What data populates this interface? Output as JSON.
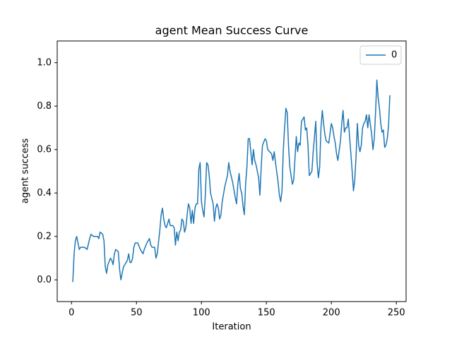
{
  "chart_data": {
    "type": "line",
    "title": "agent Mean Success Curve",
    "xlabel": "Iteration",
    "ylabel": "agent success",
    "xlim": [
      -11,
      257.5
    ],
    "ylim": [
      -0.1,
      1.1
    ],
    "xticks": [
      0,
      50,
      100,
      150,
      200,
      250
    ],
    "yticks": [
      {
        "value": 0,
        "label": "0.0"
      },
      {
        "value": 0.2,
        "label": "0.2"
      },
      {
        "value": 0.4,
        "label": "0.4"
      },
      {
        "value": 0.6,
        "label": "0.6"
      },
      {
        "value": 0.8,
        "label": "0.8"
      },
      {
        "value": 1,
        "label": "1.0"
      }
    ],
    "legend": "upper right",
    "x": [
      1,
      2,
      3,
      4,
      5,
      6,
      7,
      8,
      10,
      12,
      14,
      15,
      17,
      20,
      21,
      22,
      24,
      25,
      26,
      27,
      28,
      30,
      31,
      32,
      33,
      34,
      36,
      37,
      38,
      40,
      42,
      43,
      44,
      45,
      46,
      47,
      48,
      49,
      51,
      53,
      55,
      56,
      58,
      60,
      61,
      62,
      64,
      65,
      66,
      68,
      69,
      70,
      71,
      72,
      73,
      74,
      75,
      76,
      78,
      79,
      80,
      81,
      82,
      83,
      84,
      85,
      86,
      87,
      88,
      89,
      90,
      91,
      92,
      93,
      94,
      95,
      96,
      97,
      98,
      99,
      100,
      101,
      102,
      103,
      104,
      105,
      106,
      107,
      109,
      110,
      111,
      112,
      113,
      114,
      115,
      116,
      118,
      120,
      121,
      122,
      124,
      126,
      127,
      128,
      129,
      130,
      131,
      132,
      133,
      134,
      135,
      136,
      137,
      139,
      140,
      141,
      142,
      144,
      145,
      146,
      147,
      149,
      150,
      151,
      154,
      155,
      156,
      157,
      159,
      160,
      161,
      162,
      163,
      164,
      165,
      166,
      167,
      168,
      170,
      171,
      172,
      173,
      174,
      175,
      176,
      177,
      178,
      179,
      180,
      181,
      182,
      183,
      185,
      186,
      187,
      188,
      189,
      190,
      191,
      192,
      193,
      194,
      195,
      196,
      198,
      200,
      201,
      202,
      203,
      204,
      205,
      207,
      208,
      209,
      210,
      211,
      212,
      213,
      214,
      216,
      217,
      218,
      219,
      220,
      221,
      222,
      223,
      224,
      225,
      226,
      227,
      228,
      229,
      231,
      232,
      233,
      234,
      235,
      236,
      237,
      238,
      239,
      240,
      241,
      242,
      243,
      244,
      245
    ],
    "series": [
      {
        "name": "0",
        "color": "#1f77b4",
        "values": [
          -0.01,
          0.12,
          0.18,
          0.2,
          0.17,
          0.14,
          0.15,
          0.15,
          0.15,
          0.14,
          0.19,
          0.21,
          0.2,
          0.2,
          0.19,
          0.22,
          0.21,
          0.18,
          0.06,
          0.03,
          0.07,
          0.1,
          0.09,
          0.07,
          0.12,
          0.14,
          0.13,
          0.05,
          0.0,
          0.06,
          0.08,
          0.09,
          0.12,
          0.08,
          0.08,
          0.1,
          0.15,
          0.17,
          0.17,
          0.14,
          0.12,
          0.14,
          0.17,
          0.19,
          0.16,
          0.15,
          0.15,
          0.1,
          0.12,
          0.23,
          0.3,
          0.33,
          0.28,
          0.25,
          0.24,
          0.26,
          0.28,
          0.25,
          0.25,
          0.24,
          0.16,
          0.22,
          0.18,
          0.22,
          0.23,
          0.28,
          0.27,
          0.22,
          0.24,
          0.3,
          0.35,
          0.33,
          0.26,
          0.32,
          0.26,
          0.33,
          0.35,
          0.35,
          0.51,
          0.54,
          0.36,
          0.32,
          0.29,
          0.39,
          0.54,
          0.53,
          0.48,
          0.4,
          0.35,
          0.27,
          0.33,
          0.35,
          0.33,
          0.28,
          0.3,
          0.36,
          0.43,
          0.48,
          0.54,
          0.5,
          0.45,
          0.38,
          0.35,
          0.44,
          0.49,
          0.42,
          0.4,
          0.34,
          0.3,
          0.44,
          0.52,
          0.65,
          0.65,
          0.53,
          0.6,
          0.55,
          0.53,
          0.47,
          0.39,
          0.52,
          0.62,
          0.65,
          0.64,
          0.6,
          0.58,
          0.55,
          0.59,
          0.54,
          0.45,
          0.39,
          0.36,
          0.41,
          0.6,
          0.7,
          0.79,
          0.77,
          0.62,
          0.52,
          0.44,
          0.46,
          0.56,
          0.66,
          0.59,
          0.63,
          0.62,
          0.73,
          0.74,
          0.75,
          0.69,
          0.7,
          0.62,
          0.48,
          0.5,
          0.59,
          0.66,
          0.73,
          0.54,
          0.47,
          0.52,
          0.7,
          0.78,
          0.72,
          0.67,
          0.64,
          0.63,
          0.72,
          0.7,
          0.66,
          0.63,
          0.58,
          0.55,
          0.64,
          0.72,
          0.78,
          0.68,
          0.7,
          0.7,
          0.74,
          0.66,
          0.5,
          0.41,
          0.46,
          0.57,
          0.72,
          0.62,
          0.59,
          0.62,
          0.7,
          0.72,
          0.73,
          0.76,
          0.7,
          0.76,
          0.67,
          0.6,
          0.65,
          0.77,
          0.92,
          0.84,
          0.79,
          0.72,
          0.68,
          0.69,
          0.61,
          0.62,
          0.65,
          0.71,
          0.85
        ]
      }
    ]
  }
}
